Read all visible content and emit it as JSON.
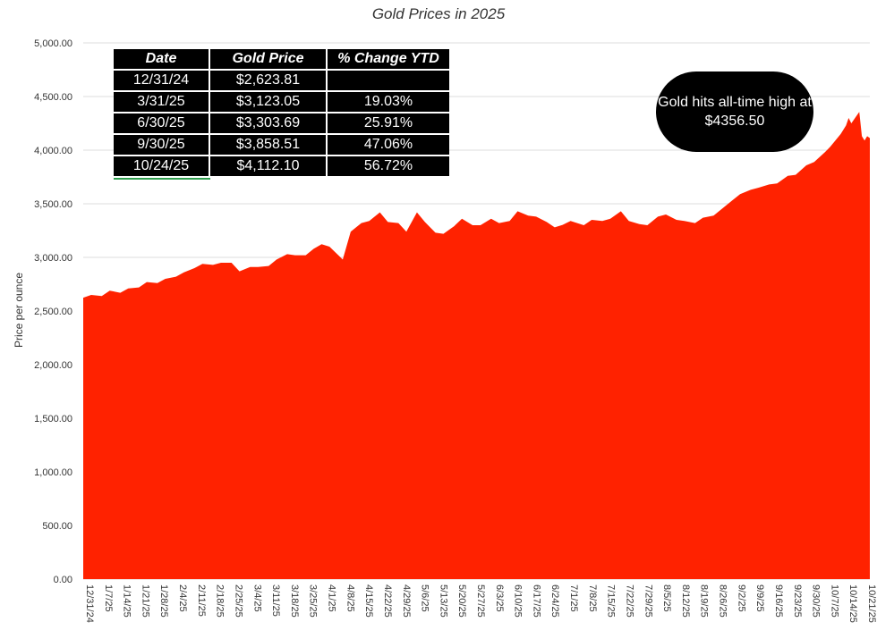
{
  "chart_data": {
    "type": "area",
    "title": "Gold Prices in 2025",
    "ylabel": "Price per ounce",
    "xlabel": "",
    "ylim": [
      0,
      5000
    ],
    "yticks": [
      "5,000.00",
      "4,500.00",
      "4,000.00",
      "3,500.00",
      "3,000.00",
      "2,500.00",
      "2,000.00",
      "1,500.00",
      "1,000.00",
      "500.00",
      "0.00"
    ],
    "ytick_values": [
      5000,
      4500,
      4000,
      3500,
      3000,
      2500,
      2000,
      1500,
      1000,
      500,
      0
    ],
    "xticks": [
      "12/31/24",
      "1/7/25",
      "1/14/25",
      "1/21/25",
      "1/28/25",
      "2/4/25",
      "2/11/25",
      "2/18/25",
      "2/25/25",
      "3/4/25",
      "3/11/25",
      "3/18/25",
      "3/25/25",
      "4/1/25",
      "4/8/25",
      "4/15/25",
      "4/22/25",
      "4/29/25",
      "5/6/25",
      "5/13/25",
      "5/20/25",
      "5/27/25",
      "6/3/25",
      "6/10/25",
      "6/17/25",
      "6/24/25",
      "7/1/25",
      "7/8/25",
      "7/15/25",
      "7/22/25",
      "7/29/25",
      "8/5/25",
      "8/12/25",
      "8/19/25",
      "8/26/25",
      "9/2/25",
      "9/9/25",
      "9/16/25",
      "9/23/25",
      "9/30/25",
      "10/7/25",
      "10/14/25",
      "10/21/25"
    ],
    "series": [
      {
        "color": "#ff2200",
        "points": [
          [
            "12/31/24",
            2623.81
          ],
          [
            "1/3/25",
            2650
          ],
          [
            "1/7/25",
            2640
          ],
          [
            "1/10/25",
            2690
          ],
          [
            "1/14/25",
            2670
          ],
          [
            "1/17/25",
            2710
          ],
          [
            "1/21/25",
            2720
          ],
          [
            "1/24/25",
            2770
          ],
          [
            "1/28/25",
            2760
          ],
          [
            "1/31/25",
            2800
          ],
          [
            "2/4/25",
            2820
          ],
          [
            "2/7/25",
            2860
          ],
          [
            "2/11/25",
            2900
          ],
          [
            "2/14/25",
            2940
          ],
          [
            "2/18/25",
            2930
          ],
          [
            "2/21/25",
            2950
          ],
          [
            "2/25/25",
            2950
          ],
          [
            "2/28/25",
            2870
          ],
          [
            "3/4/25",
            2910
          ],
          [
            "3/7/25",
            2910
          ],
          [
            "3/11/25",
            2920
          ],
          [
            "3/14/25",
            2980
          ],
          [
            "3/18/25",
            3030
          ],
          [
            "3/21/25",
            3020
          ],
          [
            "3/25/25",
            3020
          ],
          [
            "3/28/25",
            3080
          ],
          [
            "3/31/25",
            3123.05
          ],
          [
            "4/3/25",
            3100
          ],
          [
            "4/8/25",
            2980
          ],
          [
            "4/11/25",
            3240
          ],
          [
            "4/15/25",
            3320
          ],
          [
            "4/18/25",
            3340
          ],
          [
            "4/22/25",
            3420
          ],
          [
            "4/25/25",
            3330
          ],
          [
            "4/29/25",
            3320
          ],
          [
            "5/2/25",
            3240
          ],
          [
            "5/6/25",
            3420
          ],
          [
            "5/9/25",
            3330
          ],
          [
            "5/13/25",
            3230
          ],
          [
            "5/16/25",
            3220
          ],
          [
            "5/20/25",
            3290
          ],
          [
            "5/23/25",
            3360
          ],
          [
            "5/27/25",
            3300
          ],
          [
            "5/30/25",
            3300
          ],
          [
            "6/3/25",
            3360
          ],
          [
            "6/6/25",
            3320
          ],
          [
            "6/10/25",
            3340
          ],
          [
            "6/13/25",
            3430
          ],
          [
            "6/17/25",
            3390
          ],
          [
            "6/20/25",
            3380
          ],
          [
            "6/24/25",
            3330
          ],
          [
            "6/27/25",
            3280
          ],
          [
            "6/30/25",
            3303.69
          ],
          [
            "7/3/25",
            3340
          ],
          [
            "7/8/25",
            3300
          ],
          [
            "7/11/25",
            3350
          ],
          [
            "7/15/25",
            3340
          ],
          [
            "7/18/25",
            3360
          ],
          [
            "7/22/25",
            3430
          ],
          [
            "7/25/25",
            3340
          ],
          [
            "7/29/25",
            3310
          ],
          [
            "8/1/25",
            3300
          ],
          [
            "8/5/25",
            3380
          ],
          [
            "8/8/25",
            3400
          ],
          [
            "8/12/25",
            3350
          ],
          [
            "8/15/25",
            3340
          ],
          [
            "8/19/25",
            3320
          ],
          [
            "8/22/25",
            3370
          ],
          [
            "8/26/25",
            3390
          ],
          [
            "8/29/25",
            3450
          ],
          [
            "9/2/25",
            3530
          ],
          [
            "9/5/25",
            3590
          ],
          [
            "9/9/25",
            3630
          ],
          [
            "9/12/25",
            3650
          ],
          [
            "9/16/25",
            3680
          ],
          [
            "9/19/25",
            3690
          ],
          [
            "9/23/25",
            3760
          ],
          [
            "9/26/25",
            3770
          ],
          [
            "9/30/25",
            3858.51
          ],
          [
            "10/3/25",
            3890
          ],
          [
            "10/7/25",
            3980
          ],
          [
            "10/9/25",
            4030
          ],
          [
            "10/13/25",
            4150
          ],
          [
            "10/15/25",
            4230
          ],
          [
            "10/16/25",
            4300
          ],
          [
            "10/17/25",
            4250
          ],
          [
            "10/20/25",
            4356.5
          ],
          [
            "10/21/25",
            4130
          ],
          [
            "10/22/25",
            4090
          ],
          [
            "10/23/25",
            4130
          ],
          [
            "10/24/25",
            4112.1
          ]
        ]
      }
    ],
    "annotation": "Gold hits all-time high at $4356.50",
    "grid": true,
    "legend": "none"
  },
  "table": {
    "headers": [
      "Date",
      "Gold Price",
      "% Change YTD"
    ],
    "rows": [
      [
        "12/31/24",
        "$2,623.81",
        ""
      ],
      [
        "3/31/25",
        "$3,123.05",
        "19.03%"
      ],
      [
        "6/30/25",
        "$3,303.69",
        "25.91%"
      ],
      [
        "9/30/25",
        "$3,858.51",
        "47.06%"
      ],
      [
        "10/24/25",
        "$4,112.10",
        "56.72%"
      ]
    ]
  },
  "colors": {
    "area": "#ff2200",
    "table_bg": "#000000",
    "bubble_bg": "#000000"
  }
}
